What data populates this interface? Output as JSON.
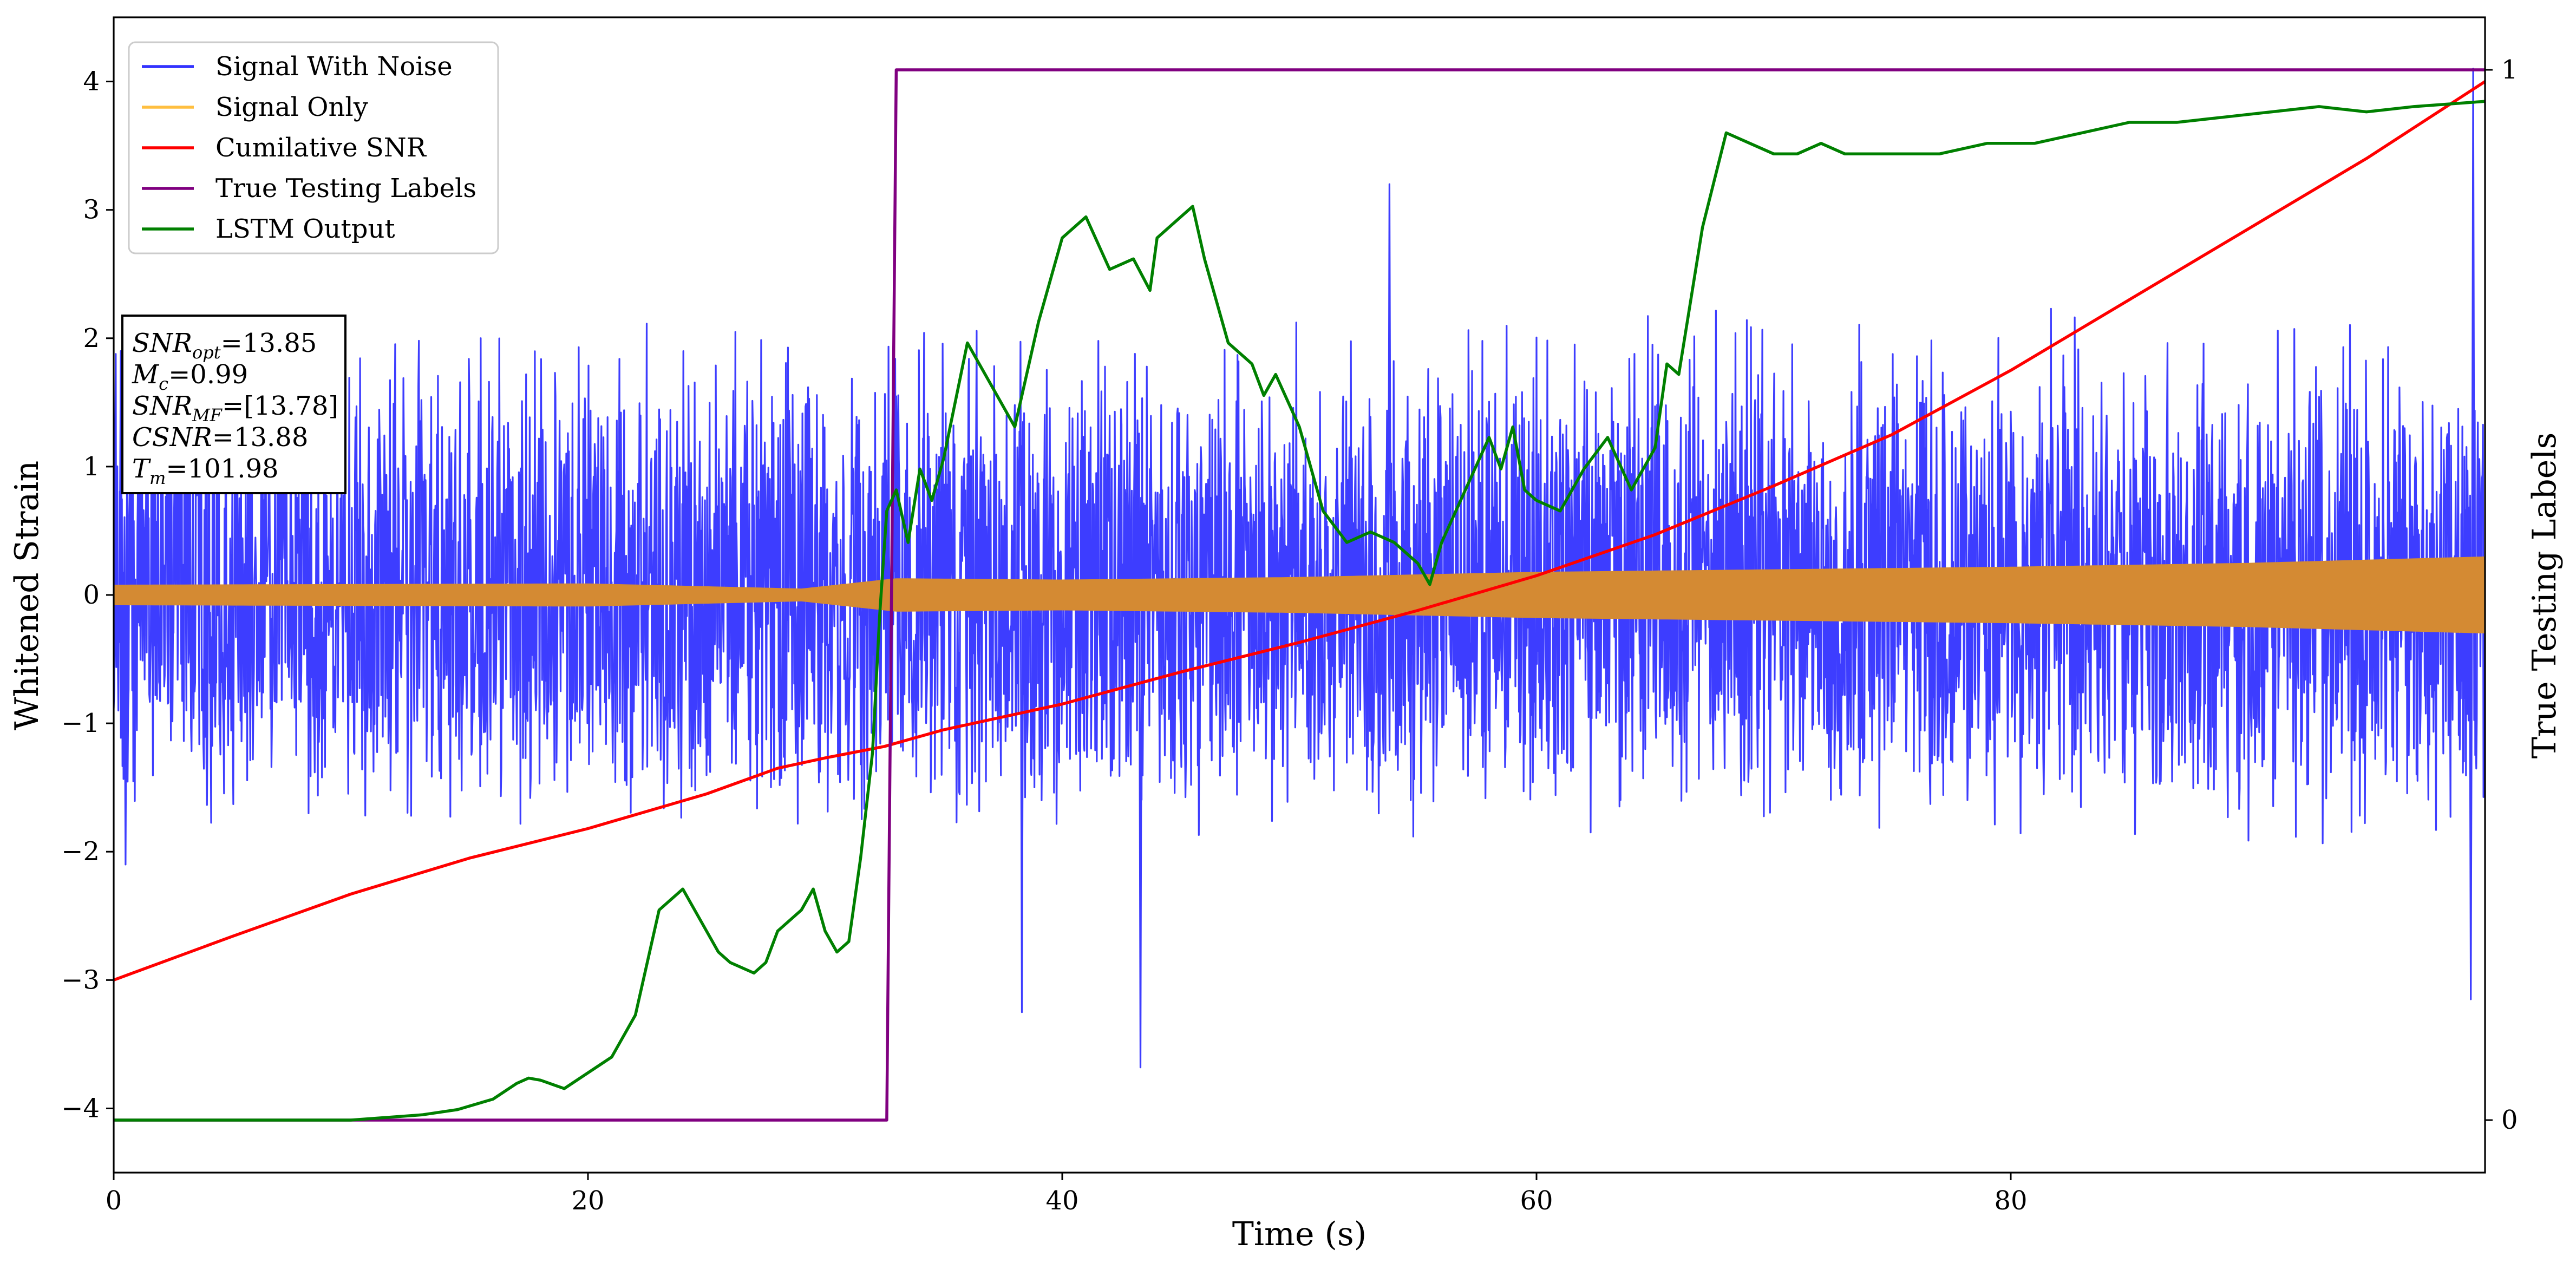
{
  "chart_data": {
    "type": "line",
    "xlabel": "Time (s)",
    "ylabel": "Whitened Strain",
    "y2label": "True Testing Labels",
    "xlim": [
      0,
      100
    ],
    "ylim": [
      -4.5,
      4.5
    ],
    "y2lim": [
      -0.05,
      1.05
    ],
    "xticks": [
      0,
      20,
      40,
      60,
      80
    ],
    "yticks": [
      -4,
      -3,
      -2,
      -1,
      0,
      1,
      2,
      3,
      4
    ],
    "y2ticks": [
      0,
      1
    ],
    "grid": false,
    "legend_position": "top-left",
    "legend": [
      {
        "label": "Signal With Noise",
        "color": "#3333ff"
      },
      {
        "label": "Signal Only",
        "color": "#ffbf40"
      },
      {
        "label": "Cumilative SNR",
        "color": "#ff0000"
      },
      {
        "label": "True Testing Labels",
        "color": "#800080"
      },
      {
        "label": "LSTM Output",
        "color": "#008000"
      }
    ],
    "info_box": {
      "snr_opt": {
        "base": "SNR",
        "sub": "opt",
        "value": "=13.85"
      },
      "mc": {
        "base": "M",
        "sub": "c",
        "value": "=0.99"
      },
      "snr_mf": {
        "base": "SNR",
        "sub": "MF",
        "value": "=[13.78]"
      },
      "csnr": {
        "base": "CSNR",
        "sub": "",
        "value": "=13.88"
      },
      "tm": {
        "base": "T",
        "sub": "m",
        "value": "=101.98"
      }
    },
    "series": [
      {
        "name": "Signal With Noise",
        "color": "#3333ff",
        "kind": "noise",
        "typical_range": [
          -1.8,
          2.1
        ],
        "extremes": [
          [
            43.3,
            -3.68
          ],
          [
            38.3,
            -3.25
          ],
          [
            99.5,
            4.1
          ],
          [
            99.4,
            -3.15
          ],
          [
            53.8,
            3.2
          ],
          [
            0.3,
            1.9
          ],
          [
            0.5,
            -2.1
          ]
        ]
      },
      {
        "name": "Signal Only",
        "color": "#ffbf40",
        "kind": "envelope",
        "envelope": [
          [
            0,
            0.08
          ],
          [
            20,
            0.09
          ],
          [
            29,
            0.05
          ],
          [
            33,
            0.13
          ],
          [
            40,
            0.12
          ],
          [
            50,
            0.14
          ],
          [
            60,
            0.18
          ],
          [
            70,
            0.2
          ],
          [
            80,
            0.22
          ],
          [
            90,
            0.25
          ],
          [
            96,
            0.28
          ],
          [
            100,
            0.3
          ]
        ]
      },
      {
        "name": "Cumilative SNR",
        "color": "#ff0000",
        "x": [
          0,
          5,
          10,
          15,
          20,
          25,
          28,
          30,
          32.5,
          35,
          40,
          45,
          50,
          55,
          60,
          65,
          70,
          75,
          80,
          85,
          90,
          95,
          100
        ],
        "y": [
          -3.0,
          -2.66,
          -2.33,
          -2.05,
          -1.82,
          -1.55,
          -1.35,
          -1.27,
          -1.18,
          -1.05,
          -0.85,
          -0.6,
          -0.37,
          -0.12,
          0.15,
          0.47,
          0.85,
          1.25,
          1.75,
          2.3,
          2.85,
          3.4,
          4.0
        ]
      },
      {
        "name": "True Testing Labels",
        "color": "#800080",
        "axis": "right",
        "x": [
          0,
          32.6,
          33.0,
          100
        ],
        "y": [
          0,
          0,
          1,
          1
        ]
      },
      {
        "name": "LSTM Output",
        "color": "#008000",
        "axis": "right",
        "x": [
          0,
          10,
          13,
          14.5,
          16,
          17,
          17.5,
          18,
          19,
          20,
          21,
          22,
          23,
          23.5,
          24,
          25,
          25.5,
          26,
          27,
          27.5,
          28,
          29,
          29.5,
          30,
          30.5,
          31,
          31.5,
          32,
          32.3,
          32.6,
          33,
          33.5,
          34,
          34.5,
          35,
          36,
          37,
          38,
          39,
          40,
          41,
          42,
          43,
          43.7,
          44,
          45,
          45.5,
          46,
          46.5,
          47,
          48,
          48.5,
          49,
          50,
          51,
          52,
          53,
          54,
          55,
          55.5,
          56,
          57,
          58,
          58.5,
          59,
          59.5,
          60,
          61,
          62,
          63,
          64,
          65,
          65.5,
          66,
          66.5,
          67,
          68,
          69,
          70,
          71,
          72,
          73,
          75,
          77,
          79,
          81,
          83,
          85,
          87,
          89,
          91,
          93,
          95,
          97,
          100
        ],
        "y": [
          0,
          0,
          0.005,
          0.01,
          0.02,
          0.035,
          0.04,
          0.038,
          0.03,
          0.045,
          0.06,
          0.1,
          0.2,
          0.21,
          0.22,
          0.18,
          0.16,
          0.15,
          0.14,
          0.15,
          0.18,
          0.2,
          0.22,
          0.18,
          0.16,
          0.17,
          0.25,
          0.35,
          0.48,
          0.58,
          0.6,
          0.55,
          0.62,
          0.59,
          0.63,
          0.74,
          0.7,
          0.66,
          0.76,
          0.84,
          0.86,
          0.81,
          0.82,
          0.79,
          0.84,
          0.86,
          0.87,
          0.82,
          0.78,
          0.74,
          0.72,
          0.69,
          0.71,
          0.66,
          0.58,
          0.55,
          0.56,
          0.55,
          0.53,
          0.51,
          0.55,
          0.6,
          0.65,
          0.62,
          0.66,
          0.6,
          0.59,
          0.58,
          0.62,
          0.65,
          0.6,
          0.64,
          0.72,
          0.71,
          0.78,
          0.85,
          0.94,
          0.93,
          0.92,
          0.92,
          0.93,
          0.92,
          0.92,
          0.92,
          0.93,
          0.93,
          0.94,
          0.95,
          0.95,
          0.955,
          0.96,
          0.965,
          0.96,
          0.965,
          0.97
        ]
      }
    ]
  }
}
